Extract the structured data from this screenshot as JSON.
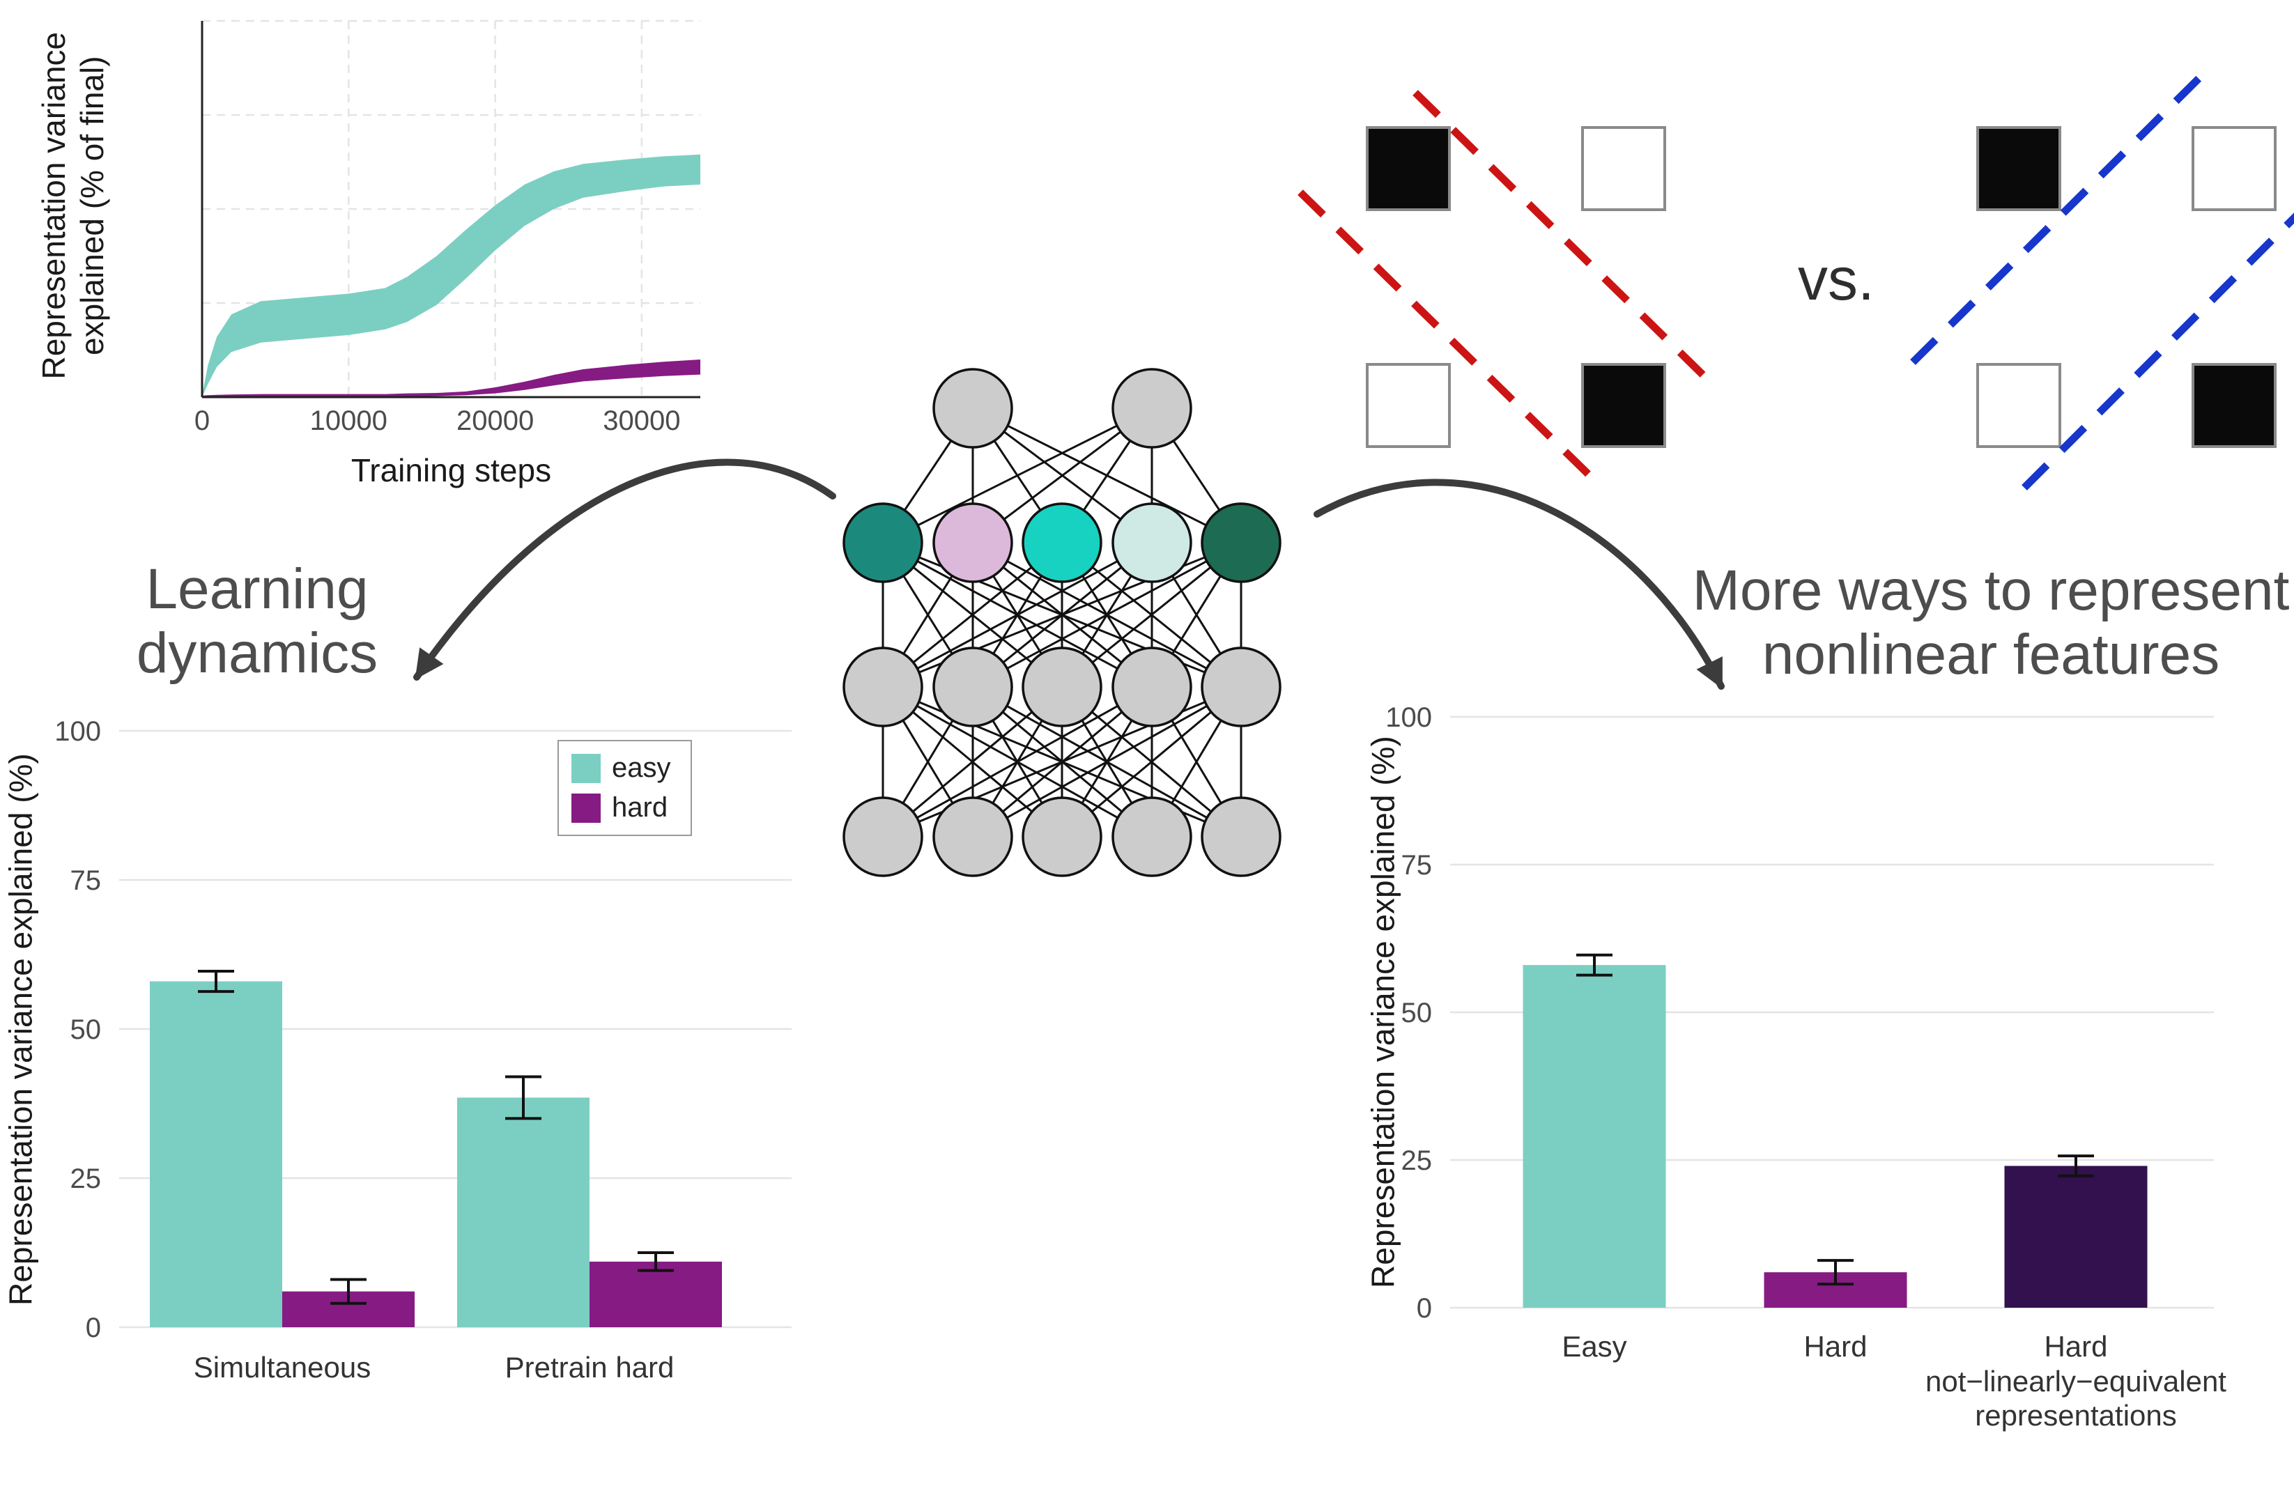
{
  "labels": {
    "learning_dynamics": "Learning\ndynamics",
    "more_ways": "More ways to represent\nnonlinear features"
  },
  "xor": {
    "vs_label": "vs.",
    "panels": [
      {
        "name": "xor-solution-red",
        "line_color": "#cc1414",
        "line_style": "dashed",
        "cells": [
          [
            "filled",
            "empty"
          ],
          [
            "empty",
            "filled"
          ]
        ]
      },
      {
        "name": "xor-solution-blue",
        "line_color": "#1736cc",
        "line_style": "dashed",
        "cells": [
          [
            "filled",
            "empty"
          ],
          [
            "empty",
            "filled"
          ]
        ]
      }
    ]
  },
  "network": {
    "layers": [
      {
        "name": "output-layer",
        "colors": [
          "#cccccc",
          "#cccccc"
        ]
      },
      {
        "name": "hidden-colored-layer",
        "colors": [
          "#1b8a7d",
          "#dcb9da",
          "#17d2c0",
          "#cfe9e4",
          "#1d6b52"
        ]
      },
      {
        "name": "hidden-gray-layer",
        "colors": [
          "#cccccc",
          "#cccccc",
          "#cccccc",
          "#cccccc",
          "#cccccc"
        ]
      },
      {
        "name": "input-layer",
        "colors": [
          "#cccccc",
          "#cccccc",
          "#cccccc",
          "#cccccc",
          "#cccccc"
        ]
      }
    ]
  },
  "chart_data": [
    {
      "id": "training-curve",
      "type": "area",
      "xlabel": "Training steps",
      "ylabel": "Representation variance\nexplained (% of final)",
      "xlim": [
        0,
        34000
      ],
      "ylim": [
        0,
        100
      ],
      "xticks": [
        0,
        10000,
        20000,
        30000
      ],
      "ygrid": [
        0,
        25,
        50,
        75,
        100
      ],
      "grid": true,
      "series": [
        {
          "name": "easy",
          "color": "#7bcfc2",
          "x": [
            0,
            400,
            1000,
            2000,
            4000,
            7000,
            10000,
            12500,
            14000,
            16000,
            18000,
            20000,
            22000,
            24000,
            26000,
            29000,
            31500,
            34000
          ],
          "mean": [
            0,
            6,
            12,
            17,
            20,
            21,
            22,
            23.5,
            26,
            31,
            38,
            45,
            51,
            55,
            57.5,
            59,
            60,
            60.5
          ],
          "halfwidth": [
            0.5,
            2.5,
            4,
            5,
            5.5,
            5.5,
            5.5,
            5.5,
            6,
            6.5,
            6.5,
            6,
            5.5,
            5,
            4.5,
            4.2,
            4,
            4
          ]
        },
        {
          "name": "hard",
          "color": "#861b84",
          "x": [
            0,
            400,
            1000,
            2000,
            4000,
            7000,
            10000,
            12500,
            14000,
            16000,
            18000,
            20000,
            22000,
            24000,
            26000,
            29000,
            31500,
            34000
          ],
          "mean": [
            0.2,
            0.3,
            0.4,
            0.4,
            0.5,
            0.5,
            0.5,
            0.5,
            0.6,
            0.7,
            1.0,
            1.8,
            3.0,
            4.5,
            5.8,
            6.8,
            7.5,
            8.0
          ],
          "halfwidth": [
            0.2,
            0.2,
            0.2,
            0.3,
            0.3,
            0.3,
            0.3,
            0.3,
            0.4,
            0.4,
            0.5,
            0.8,
            1.1,
            1.4,
            1.6,
            1.8,
            1.9,
            2.0
          ]
        }
      ]
    },
    {
      "id": "learning-dynamics-bars",
      "type": "bar",
      "ylabel": "Representation variance explained (%)",
      "ylim": [
        0,
        100
      ],
      "yticks": [
        0,
        25,
        50,
        75,
        100
      ],
      "categories": [
        "Simultaneous",
        "Pretrain hard"
      ],
      "series": [
        {
          "name": "easy",
          "color": "#7bcfc2",
          "values": [
            58,
            38.5
          ],
          "errors": [
            1.7,
            3.5
          ]
        },
        {
          "name": "hard",
          "color": "#861b84",
          "values": [
            6,
            11
          ],
          "errors": [
            2,
            1.5
          ]
        }
      ],
      "legend": [
        "easy",
        "hard"
      ],
      "legend_position": "top-right"
    },
    {
      "id": "nonlinear-features-bars",
      "type": "bar",
      "ylabel": "Representation variance explained (%)",
      "ylim": [
        0,
        100
      ],
      "yticks": [
        0,
        25,
        50,
        75,
        100
      ],
      "categories": [
        "Easy",
        "Hard",
        "Hard\nnot−linearly−equivalent\nrepresentations"
      ],
      "values": [
        58,
        6,
        24
      ],
      "errors": [
        1.7,
        2,
        1.7
      ],
      "colors": [
        "#7bcfc2",
        "#861b84",
        "#33104e"
      ]
    }
  ]
}
